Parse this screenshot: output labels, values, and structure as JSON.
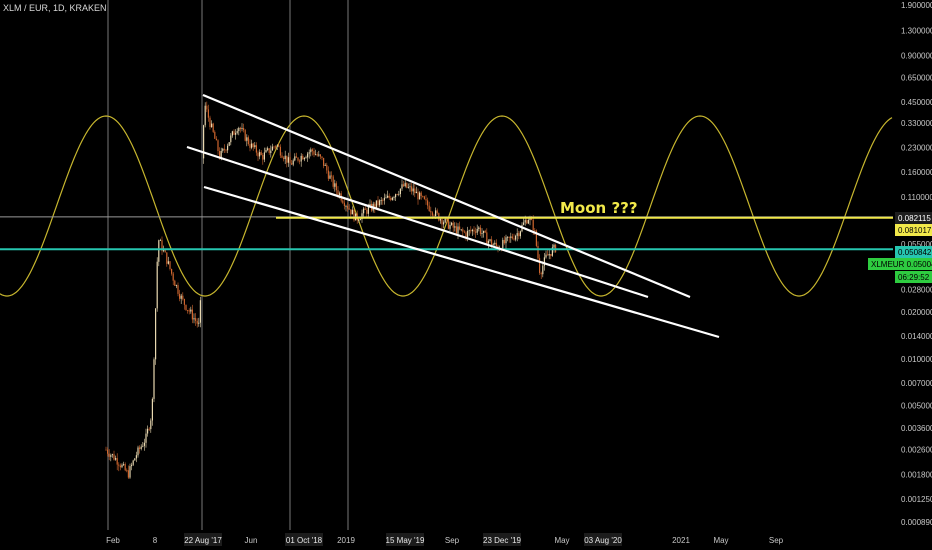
{
  "header": {
    "symbol_label": "XLM / EUR, 1D, KRAKEN"
  },
  "colors": {
    "background": "#000000",
    "sine_wave": "#c7b62e",
    "trend_lines": "#ffffff",
    "moon_line": "#f2e94a",
    "current_line": "#26c6b0",
    "candle_up": "#e8d8b0",
    "candle_down": "#d0662e",
    "session_line": "#777777",
    "axis_text": "#c8c8c8"
  },
  "chart_data": {
    "type": "candlestick",
    "yscale": "log",
    "y_ticks": [
      "1.900000",
      "1.300000",
      "0.900000",
      "0.650000",
      "0.450000",
      "0.330000",
      "0.230000",
      "0.160000",
      "0.110000",
      "0.082115",
      "0.081017",
      "0.055000",
      "0.050842",
      "0.050043",
      "0.028000",
      "0.020000",
      "0.014000",
      "0.010000",
      "0.007000",
      "0.005000",
      "0.003600",
      "0.002600",
      "0.001800",
      "0.001250",
      "0.000890"
    ],
    "x_ticks": [
      "Feb",
      "8",
      "22 Aug '17",
      "Jun",
      "01 Oct '18",
      "2019",
      "15 May '19",
      "Sep",
      "23 Dec '19",
      "May",
      "03 Aug '20",
      "2021",
      "May",
      "Sep"
    ],
    "x_ticks_highlighted": [
      "22 Aug '17",
      "01 Oct '18",
      "15 May '19",
      "23 Dec '19",
      "03 Aug '20"
    ],
    "price_badges": [
      {
        "label": "0.082115",
        "value": 0.082115,
        "bg": "#1e1e1e",
        "fg": "#ffffff"
      },
      {
        "label": "0.081017",
        "value": 0.081017,
        "bg": "#f2e94a",
        "fg": "#000000"
      },
      {
        "label": "0.050842",
        "value": 0.050842,
        "bg": "#26c6b0",
        "fg": "#000000"
      },
      {
        "label": "XLMEUR 0.050043",
        "value": 0.050043,
        "bg": "#2ecc40",
        "fg": "#000000"
      },
      {
        "label": "06:29:52",
        "value": 0.043,
        "bg": "#2ecc40",
        "fg": "#000000"
      }
    ],
    "annotations": [
      {
        "text": "Moon ???"
      }
    ],
    "horizontal_lines": [
      {
        "name": "resistance",
        "value": 0.082115
      },
      {
        "name": "moon",
        "value": 0.081017
      },
      {
        "name": "current",
        "value": 0.050842
      }
    ],
    "series": [
      {
        "name": "XLM/EUR",
        "values_approx": [
          0.0026,
          0.0021,
          0.0018,
          0.0024,
          0.0032,
          0.0045,
          0.06,
          0.04,
          0.025,
          0.016,
          0.45,
          0.33,
          0.26,
          0.23,
          0.18,
          0.2,
          0.15,
          0.1,
          0.085,
          0.09,
          0.13,
          0.1,
          0.075,
          0.06,
          0.055,
          0.045,
          0.06,
          0.05
        ]
      }
    ]
  }
}
